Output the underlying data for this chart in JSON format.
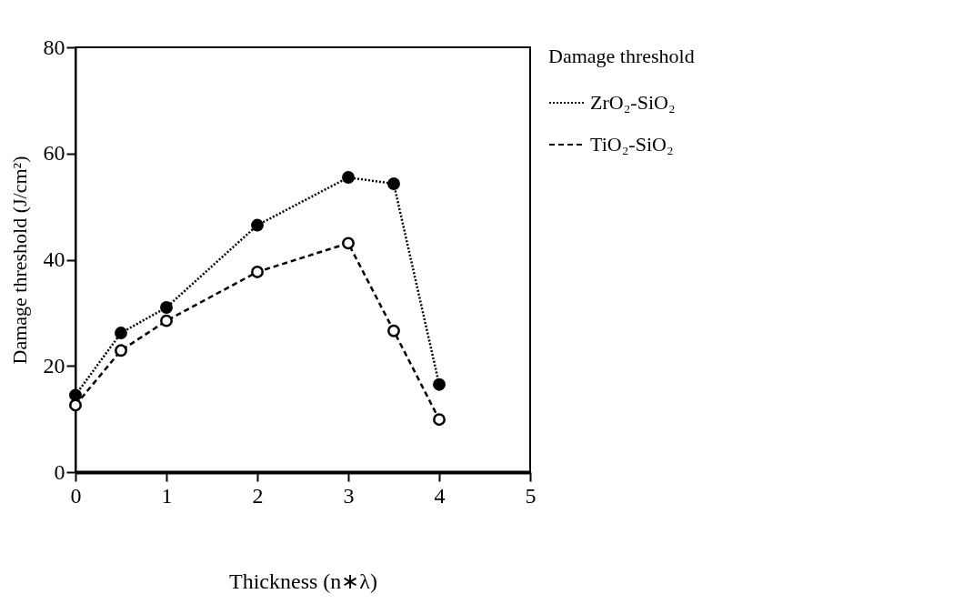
{
  "chart_data": {
    "type": "line",
    "xlabel": "Thickness (n∗λ)",
    "ylabel": "Damage threshold (J/cm²)",
    "legend_title": "Damage threshold",
    "x": [
      0,
      0.5,
      1,
      2,
      3,
      3.5,
      4
    ],
    "series": [
      {
        "name": "ZrO₂-SiO₂",
        "color": "#000000",
        "line_style": "dotted",
        "values": [
          14.5,
          26.2,
          31.0,
          46.5,
          55.5,
          54.3,
          16.5
        ]
      },
      {
        "name": "TiO₂-SiO₂",
        "color": "#000000",
        "line_style": "dashed",
        "values": [
          12.6,
          22.9,
          28.5,
          37.7,
          43.1,
          26.6,
          9.9
        ]
      }
    ],
    "xlim": [
      0,
      5
    ],
    "ylim": [
      0,
      80
    ],
    "xticks": [
      0,
      1,
      2,
      3,
      4,
      5
    ],
    "yticks": [
      0,
      20,
      40,
      60,
      80
    ],
    "grid": false,
    "legend": "right",
    "marker": "circle"
  }
}
